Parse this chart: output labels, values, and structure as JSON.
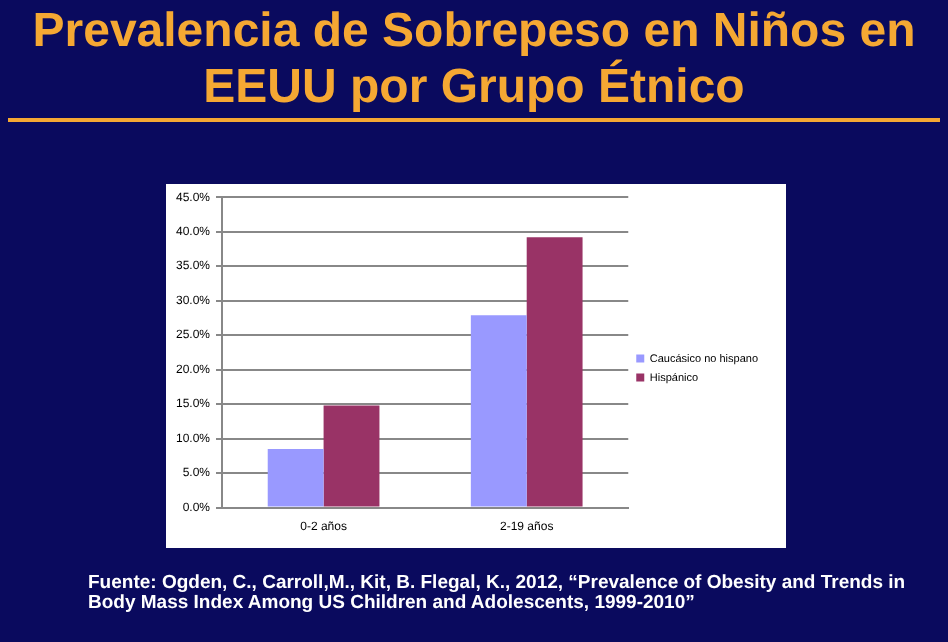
{
  "chart_data": {
    "type": "bar",
    "title": "Prevalencia de Sobrepeso en Niños en EEUU por Grupo Étnico",
    "categories": [
      "0-2 años",
      "2-19 años"
    ],
    "series": [
      {
        "name": "Caucásico no hispano",
        "color": "#9999ff",
        "values": [
          8.5,
          27.9
        ]
      },
      {
        "name": "Hispánico",
        "color": "#993366",
        "values": [
          14.8,
          39.2
        ]
      }
    ],
    "ylim": [
      0,
      45
    ],
    "yticks": [
      {
        "value": 0,
        "label": "0.0%"
      },
      {
        "value": 5,
        "label": "5.0%"
      },
      {
        "value": 10,
        "label": "10.0%"
      },
      {
        "value": 15,
        "label": "15.0%"
      },
      {
        "value": 20,
        "label": "20.0%"
      },
      {
        "value": 25,
        "label": "25.0%"
      },
      {
        "value": 30,
        "label": "30.0%"
      },
      {
        "value": 35,
        "label": "35.0%"
      },
      {
        "value": 40,
        "label": "40.0%"
      },
      {
        "value": 45,
        "label": "45.0%"
      }
    ],
    "grid": "y",
    "legend": "right",
    "annotations": [
      "Fuente: Ogden,  C., Carroll,M.,  Kit, B. Flegal, K., 2012, “Prevalence of Obesity and Trends in Body Mass Index Among US Children and Adolescents, 1999-2010”"
    ]
  }
}
